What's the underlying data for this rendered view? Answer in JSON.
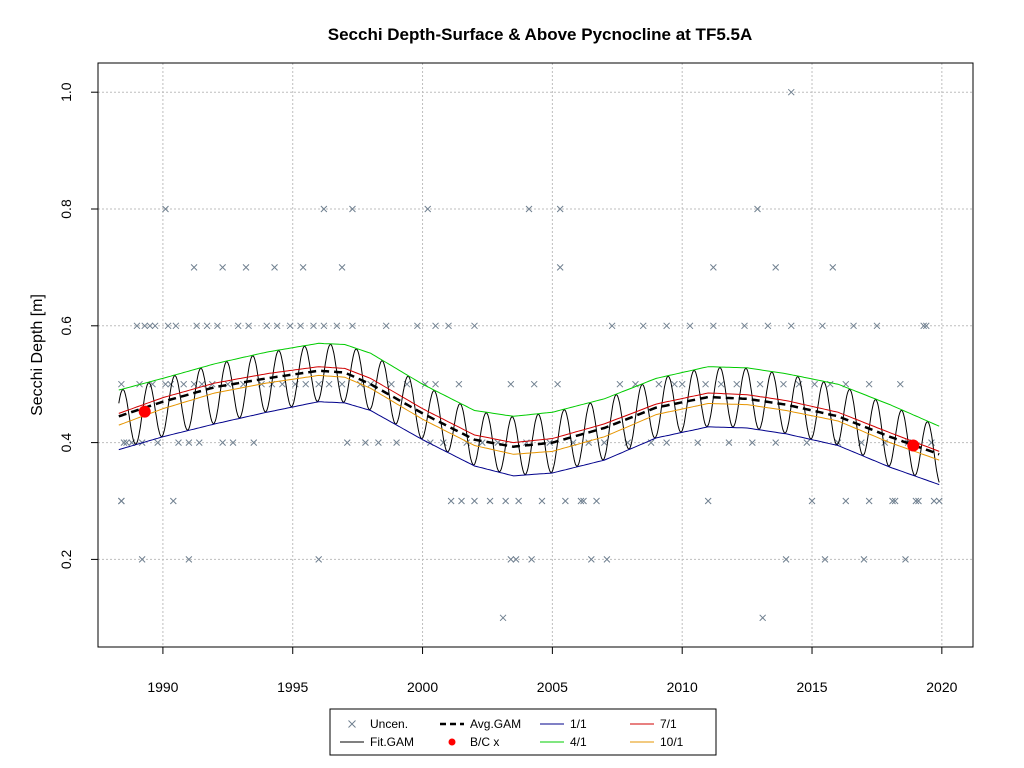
{
  "chart_data": {
    "type": "line",
    "title": "Secchi Depth-Surface & Above Pycnocline at TF5.5A",
    "xlabel": "",
    "ylabel": "Secchi Depth [m]",
    "xlim": [
      1987.5,
      2021.2
    ],
    "ylim": [
      0.05,
      1.05
    ],
    "x_ticks": [
      1990,
      1995,
      2000,
      2005,
      2010,
      2015,
      2020
    ],
    "y_ticks": [
      0.2,
      0.4,
      0.6,
      0.8,
      1.0
    ],
    "y_tick_labels": [
      "0.2",
      "0.4",
      "0.6",
      "0.8",
      "1.0"
    ],
    "grid": true,
    "legend_position": "bottom-center",
    "legend": [
      {
        "label": "Uncen.",
        "key": "uncen",
        "type": "cross",
        "color": "#708090"
      },
      {
        "label": "Avg.GAM",
        "key": "avg",
        "type": "dashed",
        "color": "#000000"
      },
      {
        "label": "1/1",
        "key": "d1",
        "type": "line",
        "color": "#00008B"
      },
      {
        "label": "7/1",
        "key": "d7",
        "type": "line",
        "color": "#D00000"
      },
      {
        "label": "Fit.GAM",
        "key": "fit",
        "type": "line",
        "color": "#000000"
      },
      {
        "label": "B/C x",
        "key": "bc",
        "type": "dot",
        "color": "#FF0000"
      },
      {
        "label": "4/1",
        "key": "d4",
        "type": "line",
        "color": "#00CC00"
      },
      {
        "label": "10/1",
        "key": "d10",
        "type": "line",
        "color": "#E69500"
      }
    ],
    "colors": {
      "uncen": "#708090",
      "fit": "#000000",
      "avg": "#000000",
      "bc": "#FF0000",
      "d1": "#00008B",
      "d4": "#00CC00",
      "d7": "#D00000",
      "d10": "#E69500",
      "grid": "#BEBEBE"
    },
    "series": [
      {
        "name": "Avg.GAM",
        "x": [
          1988.3,
          1990,
          1992,
          1994,
          1996,
          1997,
          1998,
          2000,
          2002,
          2003.5,
          2005,
          2007,
          2009,
          2011,
          2012.5,
          2014,
          2016,
          2018,
          2019.9
        ],
        "y": [
          0.445,
          0.47,
          0.495,
          0.51,
          0.523,
          0.52,
          0.5,
          0.45,
          0.405,
          0.393,
          0.4,
          0.425,
          0.46,
          0.478,
          0.475,
          0.465,
          0.445,
          0.41,
          0.38
        ]
      },
      {
        "name": "1/1",
        "x": [
          1988.3,
          1990,
          1992,
          1994,
          1996,
          1997,
          1998,
          2000,
          2002,
          2003.5,
          2005,
          2007,
          2009,
          2011,
          2012.5,
          2014,
          2016,
          2018,
          2019.9
        ],
        "y": [
          0.388,
          0.41,
          0.432,
          0.452,
          0.47,
          0.468,
          0.455,
          0.405,
          0.36,
          0.343,
          0.348,
          0.37,
          0.408,
          0.427,
          0.425,
          0.415,
          0.395,
          0.358,
          0.328
        ]
      },
      {
        "name": "4/1",
        "x": [
          1988.3,
          1990,
          1992,
          1994,
          1996,
          1997,
          1998,
          2000,
          2002,
          2003.5,
          2005,
          2007,
          2009,
          2011,
          2012.5,
          2014,
          2016,
          2018,
          2019.9
        ],
        "y": [
          0.49,
          0.51,
          0.535,
          0.555,
          0.57,
          0.568,
          0.553,
          0.5,
          0.455,
          0.445,
          0.452,
          0.475,
          0.51,
          0.53,
          0.528,
          0.518,
          0.5,
          0.465,
          0.428
        ]
      },
      {
        "name": "7/1",
        "x": [
          1988.3,
          1990,
          1992,
          1994,
          1996,
          1997,
          1998,
          2000,
          2002,
          2003.5,
          2005,
          2007,
          2009,
          2011,
          2012.5,
          2014,
          2016,
          2018,
          2019.9
        ],
        "y": [
          0.45,
          0.477,
          0.502,
          0.518,
          0.53,
          0.527,
          0.51,
          0.458,
          0.413,
          0.4,
          0.407,
          0.432,
          0.466,
          0.485,
          0.482,
          0.472,
          0.452,
          0.417,
          0.385
        ]
      },
      {
        "name": "10/1",
        "x": [
          1988.3,
          1990,
          1992,
          1994,
          1996,
          1997,
          1998,
          2000,
          2002,
          2003.5,
          2005,
          2007,
          2009,
          2011,
          2012.5,
          2014,
          2016,
          2018,
          2019.9
        ],
        "y": [
          0.43,
          0.458,
          0.485,
          0.502,
          0.515,
          0.512,
          0.493,
          0.44,
          0.395,
          0.38,
          0.385,
          0.41,
          0.448,
          0.467,
          0.465,
          0.455,
          0.437,
          0.4,
          0.37
        ]
      },
      {
        "name": "Fit.GAM",
        "note": "seasonal oscillation between 1/1 and 4/1 curves, period 1 year",
        "x_start": 1988.3,
        "x_end": 2019.9,
        "period": 1.0
      }
    ],
    "bc_points": {
      "x": [
        1989.3,
        2018.9
      ],
      "y": [
        0.453,
        0.395
      ]
    },
    "uncen_points": {
      "x": [
        1988.4,
        1988.4,
        1988.5,
        1988.6,
        1988.8,
        1989.0,
        1989.1,
        1989.2,
        1989.3,
        1989.5,
        1989.6,
        1989.7,
        1989.8,
        1990.1,
        1990.2,
        1990.3,
        1990.5,
        1990.6,
        1990.8,
        1991.0,
        1991.2,
        1991.3,
        1991.4,
        1991.5,
        1991.7,
        1991.9,
        1992.1,
        1992.3,
        1992.5,
        1992.7,
        1992.9,
        1993.1,
        1993.3,
        1993.5,
        1993.8,
        1994.0,
        1994.2,
        1994.4,
        1994.6,
        1994.9,
        1995.1,
        1995.3,
        1995.5,
        1995.8,
        1996.0,
        1996.2,
        1996.4,
        1996.7,
        1996.9,
        1997.1,
        1997.3,
        1997.6,
        1997.8,
        1998.0,
        1998.3,
        1998.6,
        1998.8,
        1999.0,
        1999.4,
        1999.8,
        2000.1,
        2000.3,
        2000.5,
        2000.8,
        2001.1,
        2001.4,
        2001.7,
        2002.0,
        2002.3,
        2002.6,
        2002.9,
        2003.2,
        2003.4,
        2003.7,
        2004.0,
        2004.3,
        2004.6,
        2004.9,
        2005.2,
        2005.5,
        2005.8,
        2006.1,
        2006.4,
        2006.7,
        2007.0,
        2007.3,
        2007.6,
        2007.9,
        2008.2,
        2008.5,
        2008.8,
        2009.1,
        2009.4,
        2009.7,
        2010.0,
        2010.3,
        2010.6,
        2010.9,
        2011.2,
        2011.5,
        2011.8,
        2012.1,
        2012.4,
        2012.7,
        2013.0,
        2013.3,
        2013.6,
        2013.9,
        2014.2,
        2014.5,
        2014.8,
        2015.1,
        2015.4,
        2015.7,
        2016.0,
        2016.3,
        2016.6,
        2016.9,
        2017.2,
        2017.5,
        2017.8,
        2018.1,
        2018.4,
        2018.7,
        2019.0,
        2019.3,
        2019.6,
        2019.9,
        2003.1,
        2013.1,
        2014.2,
        2000.2,
        2004.1,
        2005.3,
        2012.9,
        1990.1,
        1996.2,
        1997.3,
        1991.2,
        1992.3,
        1993.2,
        1994.3,
        1995.4,
        1996.9,
        2005.3,
        2011.2,
        2013.6,
        2015.8,
        1988.4,
        1990.4,
        2001.5,
        2003.4,
        2004.2,
        2016.3,
        2017.2,
        2018.2,
        2019.7,
        1989.2,
        1991.0,
        1996.0,
        2003.6,
        2006.5,
        2007.1,
        2014.0,
        2015.5,
        2017.0,
        2018.6,
        2000.5,
        2001.0,
        2002.0,
        2006.2,
        2009.4,
        2011.0,
        2015.0,
        2019.1,
        2019.4
      ],
      "y": [
        0.5,
        0.3,
        0.4,
        0.4,
        0.4,
        0.6,
        0.5,
        0.4,
        0.6,
        0.6,
        0.5,
        0.6,
        0.4,
        0.5,
        0.6,
        0.5,
        0.6,
        0.4,
        0.5,
        0.4,
        0.5,
        0.6,
        0.4,
        0.5,
        0.6,
        0.5,
        0.6,
        0.4,
        0.5,
        0.4,
        0.6,
        0.5,
        0.6,
        0.4,
        0.5,
        0.6,
        0.5,
        0.6,
        0.5,
        0.6,
        0.5,
        0.6,
        0.5,
        0.6,
        0.5,
        0.6,
        0.5,
        0.6,
        0.5,
        0.4,
        0.6,
        0.5,
        0.4,
        0.5,
        0.4,
        0.6,
        0.5,
        0.4,
        0.5,
        0.6,
        0.5,
        0.4,
        0.5,
        0.4,
        0.3,
        0.5,
        0.4,
        0.3,
        0.4,
        0.3,
        0.4,
        0.3,
        0.5,
        0.3,
        0.4,
        0.5,
        0.3,
        0.4,
        0.5,
        0.3,
        0.4,
        0.3,
        0.4,
        0.3,
        0.4,
        0.6,
        0.5,
        0.4,
        0.5,
        0.6,
        0.4,
        0.5,
        0.6,
        0.5,
        0.5,
        0.6,
        0.4,
        0.5,
        0.6,
        0.5,
        0.4,
        0.5,
        0.6,
        0.4,
        0.5,
        0.6,
        0.4,
        0.5,
        0.6,
        0.5,
        0.4,
        0.5,
        0.6,
        0.5,
        0.4,
        0.5,
        0.6,
        0.4,
        0.5,
        0.6,
        0.4,
        0.3,
        0.5,
        0.4,
        0.3,
        0.6,
        0.4,
        0.3,
        0.1,
        0.1,
        1.0,
        0.8,
        0.8,
        0.8,
        0.8,
        0.8,
        0.8,
        0.8,
        0.7,
        0.7,
        0.7,
        0.7,
        0.7,
        0.7,
        0.7,
        0.7,
        0.7,
        0.7,
        0.3,
        0.3,
        0.3,
        0.2,
        0.2,
        0.3,
        0.3,
        0.3,
        0.3,
        0.2,
        0.2,
        0.2,
        0.2,
        0.2,
        0.2,
        0.2,
        0.2,
        0.2,
        0.2,
        0.6,
        0.6,
        0.6,
        0.3,
        0.4,
        0.3,
        0.3,
        0.3,
        0.6
      ]
    }
  }
}
